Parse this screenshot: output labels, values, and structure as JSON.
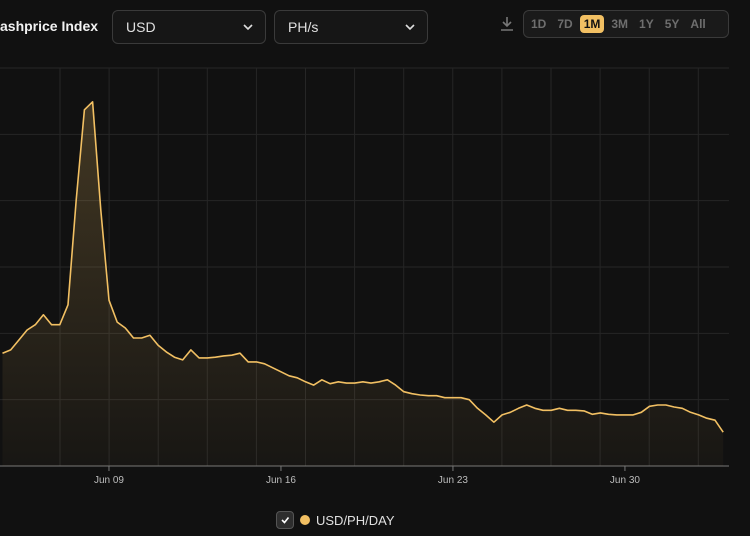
{
  "ui": {
    "currency": "USD",
    "unit": "PH/s",
    "ranges": [
      "1D",
      "7D",
      "1M",
      "3M",
      "1Y",
      "5Y",
      "All"
    ],
    "active_range": "1M"
  },
  "chart_data": {
    "type": "area",
    "title": "ashprice Index",
    "categories": [
      null,
      null,
      null,
      null,
      null,
      null,
      null,
      null,
      null,
      null,
      null,
      null,
      null,
      "Jun 09",
      null,
      null,
      null,
      null,
      null,
      null,
      null,
      null,
      null,
      null,
      null,
      null,
      null,
      null,
      null,
      null,
      null,
      null,
      null,
      null,
      "Jun 16",
      null,
      null,
      null,
      null,
      null,
      null,
      null,
      null,
      null,
      null,
      null,
      null,
      null,
      null,
      null,
      null,
      null,
      null,
      null,
      null,
      "Jun 23",
      null,
      null,
      null,
      null,
      null,
      null,
      null,
      null,
      null,
      null,
      null,
      null,
      null,
      null,
      null,
      null,
      null,
      null,
      null,
      null,
      "Jun 30",
      null,
      null,
      null,
      null,
      null,
      null,
      null,
      null,
      null,
      null,
      null,
      null
    ],
    "series": [
      {
        "name": "USD/PH/DAY",
        "color": "#f2c063",
        "values": [
          17.0,
          17.5,
          19.0,
          20.5,
          21.3,
          22.8,
          21.3,
          21.3,
          24.3,
          40.1,
          53.7,
          54.9,
          38.6,
          25.0,
          21.7,
          20.8,
          19.3,
          19.3,
          19.7,
          18.2,
          17.2,
          16.4,
          16.0,
          17.5,
          16.3,
          16.3,
          16.4,
          16.6,
          16.7,
          17.0,
          15.7,
          15.7,
          15.4,
          14.8,
          14.2,
          13.6,
          13.3,
          12.7,
          12.2,
          13.0,
          12.4,
          12.7,
          12.5,
          12.5,
          12.7,
          12.5,
          12.7,
          13.0,
          12.2,
          11.2,
          10.9,
          10.7,
          10.6,
          10.6,
          10.3,
          10.3,
          10.3,
          10.0,
          8.7,
          7.7,
          6.6,
          7.7,
          8.1,
          8.7,
          9.2,
          8.7,
          8.4,
          8.4,
          8.7,
          8.4,
          8.4,
          8.3,
          7.8,
          8.0,
          7.8,
          7.7,
          7.7,
          7.7,
          8.1,
          9.0,
          9.2,
          9.2,
          8.9,
          8.7,
          8.1,
          7.7,
          7.2,
          6.9,
          5.1
        ]
      }
    ],
    "ylim": [
      0,
      60
    ],
    "grid": true
  }
}
